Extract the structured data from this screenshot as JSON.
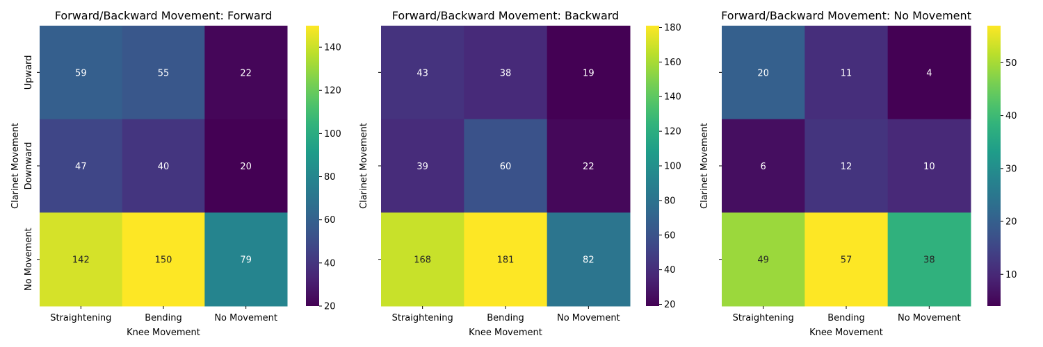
{
  "chart_data": [
    {
      "type": "heatmap",
      "title": "Forward/Backward Movement: Forward",
      "xlabel": "Knee Movement",
      "ylabel": "Clarinet Movement",
      "x_categories": [
        "Straightening",
        "Bending",
        "No Movement"
      ],
      "y_categories": [
        "Upward",
        "Downward",
        "No Movement"
      ],
      "values": [
        [
          59,
          55,
          22
        ],
        [
          47,
          40,
          20
        ],
        [
          142,
          150,
          79
        ]
      ],
      "colorbar": {
        "min": 20,
        "max": 150,
        "ticks": [
          20,
          40,
          60,
          80,
          100,
          120,
          140
        ]
      },
      "show_ytick_labels": true
    },
    {
      "type": "heatmap",
      "title": "Forward/Backward Movement: Backward",
      "xlabel": "Knee Movement",
      "ylabel": "Clarinet Movement",
      "x_categories": [
        "Straightening",
        "Bending",
        "No Movement"
      ],
      "y_categories": [
        "Upward",
        "Downward",
        "No Movement"
      ],
      "values": [
        [
          43,
          38,
          19
        ],
        [
          39,
          60,
          22
        ],
        [
          168,
          181,
          82
        ]
      ],
      "colorbar": {
        "min": 19,
        "max": 181,
        "ticks": [
          20,
          40,
          60,
          80,
          100,
          120,
          140,
          160,
          180
        ]
      },
      "show_ytick_labels": false
    },
    {
      "type": "heatmap",
      "title": "Forward/Backward Movement: No Movement",
      "xlabel": "Knee Movement",
      "ylabel": "Clarinet Movement",
      "x_categories": [
        "Straightening",
        "Bending",
        "No Movement"
      ],
      "y_categories": [
        "Upward",
        "Downward",
        "No Movement"
      ],
      "values": [
        [
          20,
          11,
          4
        ],
        [
          6,
          12,
          10
        ],
        [
          49,
          57,
          38
        ]
      ],
      "colorbar": {
        "min": 4,
        "max": 57,
        "ticks": [
          10,
          20,
          30,
          40,
          50
        ]
      },
      "show_ytick_labels": false
    }
  ],
  "colormap": "viridis"
}
